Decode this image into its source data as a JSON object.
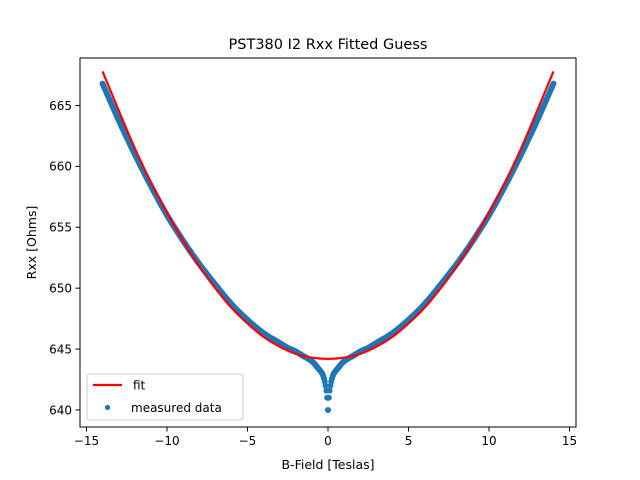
{
  "chart_data": {
    "type": "scatter",
    "title": "PST380 I2 Rxx Fitted Guess",
    "xlabel": "B-Field [Teslas]",
    "ylabel": "Rxx [Ohms]",
    "xlim": [
      -15.4,
      15.4
    ],
    "ylim": [
      638.6,
      668.9
    ],
    "xticks": [
      -15,
      -10,
      -5,
      0,
      5,
      10,
      15
    ],
    "yticks": [
      640,
      645,
      650,
      655,
      660,
      665
    ],
    "grid": false,
    "legend_position": "lower-left",
    "series": [
      {
        "name": "fit",
        "kind": "line",
        "color": "#ff0000",
        "x": [
          -14,
          -13,
          -12,
          -11,
          -10,
          -9,
          -8,
          -7,
          -6,
          -5,
          -4,
          -3,
          -2,
          -1,
          0,
          1,
          2,
          3,
          4,
          5,
          6,
          7,
          8,
          9,
          10,
          11,
          12,
          13,
          14
        ],
        "y": [
          667.8,
          664.6,
          661.5,
          658.7,
          656.2,
          653.9,
          651.8,
          650.0,
          648.4,
          647.1,
          646.0,
          645.2,
          644.6,
          644.3,
          644.2,
          644.3,
          644.6,
          645.2,
          646.0,
          647.1,
          648.4,
          650.0,
          651.8,
          653.9,
          656.2,
          658.7,
          661.5,
          664.6,
          667.8
        ]
      },
      {
        "name": "measured data",
        "kind": "scatter",
        "color": "#1f77b4",
        "x": [
          -14,
          -13,
          -12,
          -11,
          -10,
          -9,
          -8,
          -7,
          -6,
          -5,
          -4,
          -3,
          -2.5,
          -2,
          -1.5,
          -1,
          -0.6,
          -0.3,
          -0.15,
          -0.05,
          0,
          0.05,
          0.15,
          0.3,
          0.6,
          1,
          1.5,
          2,
          2.5,
          3,
          4,
          5,
          6,
          7,
          8,
          9,
          10,
          11,
          12,
          13,
          14
        ],
        "y": [
          666.8,
          663.8,
          661.0,
          658.4,
          656.0,
          653.9,
          652.0,
          650.3,
          648.7,
          647.4,
          646.3,
          645.5,
          645.1,
          644.8,
          644.4,
          644.0,
          643.4,
          642.8,
          642.0,
          641.0,
          640.0,
          641.0,
          642.0,
          642.8,
          643.4,
          644.0,
          644.4,
          644.8,
          645.1,
          645.5,
          646.3,
          647.4,
          648.7,
          650.3,
          652.0,
          653.9,
          656.0,
          658.4,
          661.0,
          663.8,
          666.8
        ]
      }
    ]
  }
}
